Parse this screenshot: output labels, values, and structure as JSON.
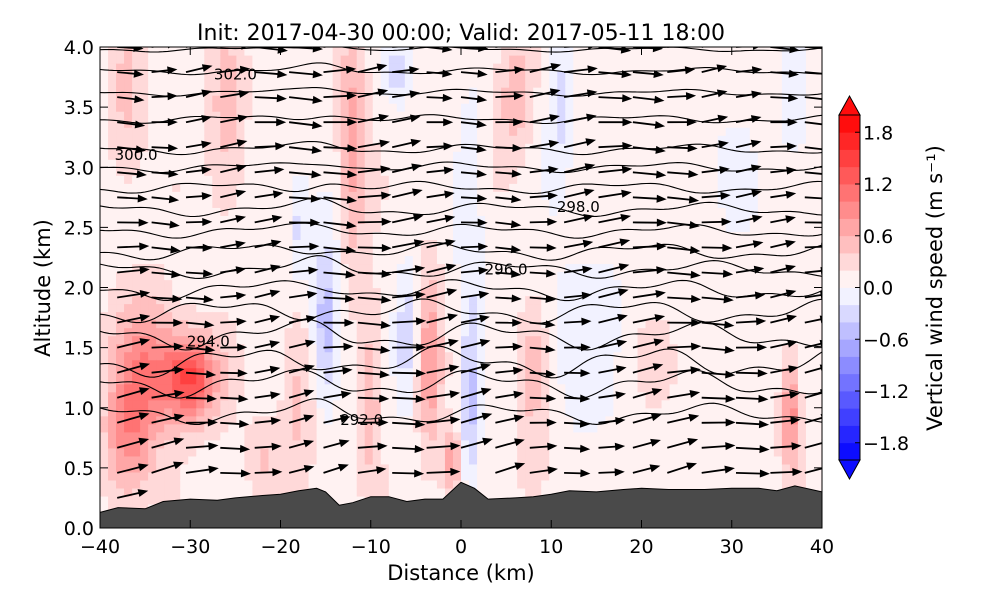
{
  "chart_data": {
    "type": "contour_cross_section",
    "title": "Init: 2017-04-30 00:00; Valid: 2017-05-11 18:00",
    "xlabel": "Distance (km)",
    "ylabel": "Altitude (km)",
    "xlim": [
      -40,
      40
    ],
    "ylim": [
      0.0,
      4.0
    ],
    "x_ticks": [
      -40,
      -30,
      -20,
      -10,
      0,
      10,
      20,
      30,
      40
    ],
    "x_tick_labels": [
      "−40",
      "−30",
      "−20",
      "−10",
      "0",
      "10",
      "20",
      "30",
      "40"
    ],
    "y_ticks": [
      0.0,
      0.5,
      1.0,
      1.5,
      2.0,
      2.5,
      3.0,
      3.5,
      4.0
    ],
    "y_tick_labels": [
      "0.0",
      "0.5",
      "1.0",
      "1.5",
      "2.0",
      "2.5",
      "3.0",
      "3.5",
      "4.0"
    ],
    "colorbar": {
      "label": "Vertical wind speed (m s⁻¹)",
      "range": [
        -2.0,
        2.0
      ],
      "extend": "both",
      "tick_values": [
        1.8,
        1.2,
        0.6,
        0.0,
        -0.6,
        -1.2,
        -1.8
      ],
      "tick_labels": [
        "1.8",
        "1.2",
        "0.6",
        "0.0",
        "−0.6",
        "−1.2",
        "−1.8"
      ],
      "colormap": "bwr"
    },
    "contour_labels": [
      {
        "text": "302.0",
        "x": -25,
        "y": 3.77
      },
      {
        "text": "300.0",
        "x": -36,
        "y": 3.1
      },
      {
        "text": "298.0",
        "x": 13,
        "y": 2.67
      },
      {
        "text": "296.0",
        "x": 5,
        "y": 2.15
      },
      {
        "text": "294.0",
        "x": -28,
        "y": 1.55
      },
      {
        "text": "292.0",
        "x": -11,
        "y": 0.9
      }
    ],
    "theta_isentropes": [
      {
        "base_y": 0.95,
        "amp": 0.06,
        "phase": 0.3
      },
      {
        "base_y": 1.2,
        "amp": 0.08,
        "phase": 1.0
      },
      {
        "base_y": 1.38,
        "amp": 0.09,
        "phase": 2.1
      },
      {
        "base_y": 1.6,
        "amp": 0.08,
        "phase": 0.7
      },
      {
        "base_y": 1.8,
        "amp": 0.07,
        "phase": 2.7
      },
      {
        "base_y": 1.98,
        "amp": 0.06,
        "phase": 1.5
      },
      {
        "base_y": 2.15,
        "amp": 0.05,
        "phase": 0.2
      },
      {
        "base_y": 2.3,
        "amp": 0.05,
        "phase": 2.2
      },
      {
        "base_y": 2.47,
        "amp": 0.04,
        "phase": 1.1
      },
      {
        "base_y": 2.65,
        "amp": 0.04,
        "phase": 0.4
      },
      {
        "base_y": 2.83,
        "amp": 0.035,
        "phase": 2.9
      },
      {
        "base_y": 3.0,
        "amp": 0.03,
        "phase": 1.7
      },
      {
        "base_y": 3.15,
        "amp": 0.03,
        "phase": 0.9
      },
      {
        "base_y": 3.4,
        "amp": 0.025,
        "phase": 2.4
      },
      {
        "base_y": 3.62,
        "amp": 0.02,
        "phase": 1.3
      },
      {
        "base_y": 3.8,
        "amp": 0.02,
        "phase": 0.5
      },
      {
        "base_y": 3.98,
        "amp": 0.015,
        "phase": 2.0
      }
    ],
    "w_features": [
      {
        "x": -30,
        "y": 1.25,
        "sx": 3.0,
        "sy": 0.35,
        "w": 1.3
      },
      {
        "x": -35,
        "y": 1.3,
        "sx": 3.5,
        "sy": 0.6,
        "w": 0.8
      },
      {
        "x": -37,
        "y": 0.7,
        "sx": 2.5,
        "sy": 0.5,
        "w": 0.6
      },
      {
        "x": -26,
        "y": 3.4,
        "sx": 2.0,
        "sy": 0.8,
        "w": 0.4
      },
      {
        "x": -37,
        "y": 3.5,
        "sx": 2.0,
        "sy": 0.7,
        "w": 0.35
      },
      {
        "x": -12,
        "y": 3.2,
        "sx": 1.5,
        "sy": 1.0,
        "w": 0.6
      },
      {
        "x": -10,
        "y": 1.1,
        "sx": 1.2,
        "sy": 0.8,
        "w": 0.45
      },
      {
        "x": -3.5,
        "y": 1.4,
        "sx": 1.3,
        "sy": 0.8,
        "w": 0.6
      },
      {
        "x": -1,
        "y": 0.55,
        "sx": 1.0,
        "sy": 0.25,
        "w": 0.7
      },
      {
        "x": 8,
        "y": 1.3,
        "sx": 1.5,
        "sy": 0.6,
        "w": 0.4
      },
      {
        "x": 6,
        "y": 3.6,
        "sx": 2.0,
        "sy": 0.6,
        "w": 0.4
      },
      {
        "x": 36.5,
        "y": 0.95,
        "sx": 1.0,
        "sy": 0.45,
        "w": 0.85
      },
      {
        "x": 22,
        "y": 1.4,
        "sx": 3.0,
        "sy": 0.4,
        "w": 0.2
      },
      {
        "x": -18,
        "y": 1.1,
        "sx": 2.0,
        "sy": 0.8,
        "w": 0.35
      },
      {
        "x": -15,
        "y": 1.7,
        "sx": 1.6,
        "sy": 0.7,
        "w": -0.7
      },
      {
        "x": -18,
        "y": 2.5,
        "sx": 1.2,
        "sy": 0.5,
        "w": -0.4
      },
      {
        "x": -6,
        "y": 1.6,
        "sx": 1.2,
        "sy": 0.6,
        "w": -0.45
      },
      {
        "x": 1,
        "y": 1.0,
        "sx": 1.0,
        "sy": 0.7,
        "w": -0.55
      },
      {
        "x": 1,
        "y": 2.6,
        "sx": 1.5,
        "sy": 1.0,
        "w": -0.35
      },
      {
        "x": 11,
        "y": 3.5,
        "sx": 1.5,
        "sy": 0.6,
        "w": -0.4
      },
      {
        "x": -7,
        "y": 3.8,
        "sx": 1.5,
        "sy": 0.3,
        "w": -0.4
      },
      {
        "x": 14,
        "y": 1.6,
        "sx": 6.0,
        "sy": 1.0,
        "w": -0.2
      },
      {
        "x": 28,
        "y": 3.0,
        "sx": 6.0,
        "sy": 1.0,
        "w": -0.12
      },
      {
        "x": 37,
        "y": 3.5,
        "sx": 1.5,
        "sy": 0.5,
        "w": -0.3
      },
      {
        "x": 8,
        "y": 0.5,
        "sx": 2.0,
        "sy": 0.3,
        "w": 0.25
      },
      {
        "x": -22,
        "y": 0.6,
        "sx": 2.0,
        "sy": 0.3,
        "w": 0.3
      }
    ],
    "terrain_km": [
      [
        -40,
        0.13
      ],
      [
        -38,
        0.17
      ],
      [
        -35,
        0.16
      ],
      [
        -33,
        0.22
      ],
      [
        -30,
        0.24
      ],
      [
        -27,
        0.23
      ],
      [
        -25,
        0.25
      ],
      [
        -22,
        0.27
      ],
      [
        -20,
        0.28
      ],
      [
        -18,
        0.31
      ],
      [
        -16,
        0.33
      ],
      [
        -15,
        0.3
      ],
      [
        -13.5,
        0.19
      ],
      [
        -12,
        0.21
      ],
      [
        -10,
        0.26
      ],
      [
        -8,
        0.26
      ],
      [
        -6,
        0.22
      ],
      [
        -4,
        0.24
      ],
      [
        -2,
        0.24
      ],
      [
        0,
        0.38
      ],
      [
        1.5,
        0.33
      ],
      [
        3,
        0.24
      ],
      [
        6,
        0.25
      ],
      [
        8,
        0.26
      ],
      [
        10,
        0.28
      ],
      [
        12,
        0.31
      ],
      [
        15,
        0.3
      ],
      [
        18,
        0.32
      ],
      [
        20,
        0.33
      ],
      [
        23,
        0.32
      ],
      [
        27,
        0.32
      ],
      [
        30,
        0.33
      ],
      [
        33,
        0.33
      ],
      [
        35,
        0.31
      ],
      [
        37,
        0.35
      ],
      [
        40,
        0.3
      ]
    ],
    "terrain_color": "#4a4a4a",
    "wind_vectors": {
      "nx": 21,
      "ny": 19,
      "mean_direction": "west-to-east, slight upward tilt"
    }
  }
}
